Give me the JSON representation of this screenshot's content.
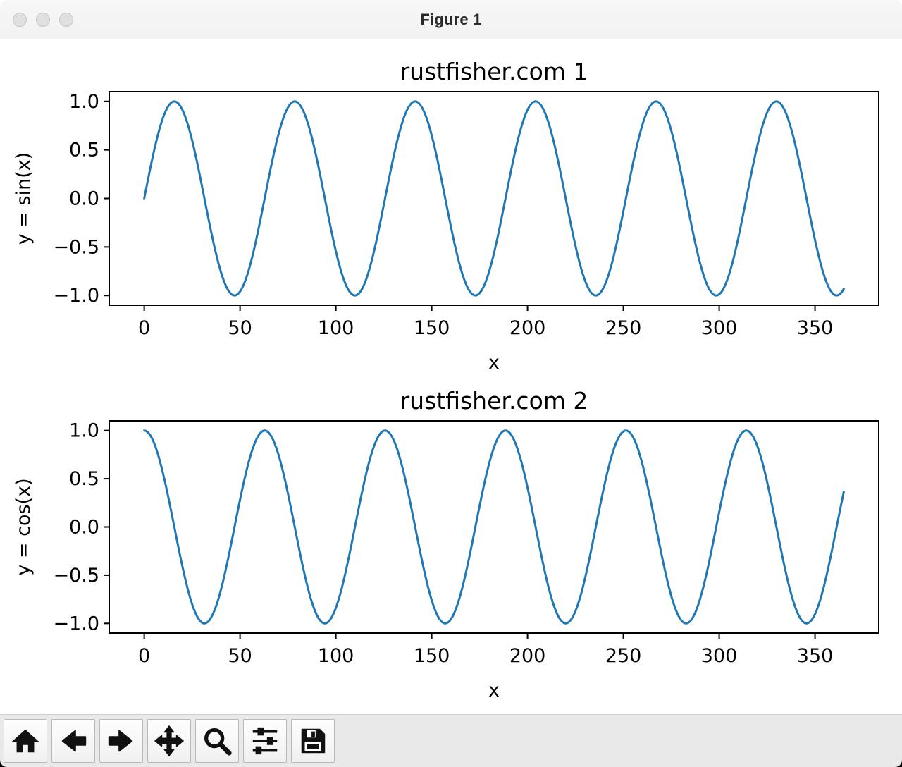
{
  "window": {
    "title": "Figure 1",
    "titlebar_buttons": [
      {
        "name": "close"
      },
      {
        "name": "minimize"
      },
      {
        "name": "zoom"
      }
    ]
  },
  "toolbar": {
    "buttons": [
      {
        "name": "home",
        "icon": "home-icon"
      },
      {
        "name": "back",
        "icon": "arrow-left-icon"
      },
      {
        "name": "forward",
        "icon": "arrow-right-icon"
      },
      {
        "name": "pan",
        "icon": "move-icon"
      },
      {
        "name": "zoom-to-rect",
        "icon": "magnifier-icon"
      },
      {
        "name": "configure-subplots",
        "icon": "sliders-icon"
      },
      {
        "name": "save",
        "icon": "save-icon"
      }
    ]
  },
  "colors": {
    "line": "#1f77b4",
    "axis": "#000000",
    "titlebar_bg": "#f5f5f5",
    "toolbar_bg": "#e9e9e9",
    "figure_bg": "#ffffff"
  },
  "chart_data": [
    {
      "type": "line",
      "title": "rustfisher.com 1",
      "xlabel": "x",
      "ylabel": "y = sin(x)",
      "xlim": [
        -18.25,
        383.25
      ],
      "ylim": [
        -1.1,
        1.1
      ],
      "grid": false,
      "legend": null,
      "x_ticks": {
        "values": [
          0,
          50,
          100,
          150,
          200,
          250,
          300,
          350
        ],
        "labels": [
          "0",
          "50",
          "100",
          "150",
          "200",
          "250",
          "300",
          "350"
        ]
      },
      "y_ticks": {
        "values": [
          1.0,
          0.5,
          0.0,
          -0.5,
          -1.0
        ],
        "labels": [
          "1.0",
          "0.5",
          "0.0",
          "−0.5",
          "−1.0"
        ]
      },
      "series": [
        {
          "name": "sin",
          "expression": "y = sin(0.1·x)",
          "function": "sin",
          "angular_frequency": 0.1,
          "x_start": 0,
          "x_end": 365,
          "x_step": 1,
          "amplitude": 1.0,
          "color": "#1f77b4",
          "line_width": 3
        }
      ]
    },
    {
      "type": "line",
      "title": "rustfisher.com 2",
      "xlabel": "x",
      "ylabel": "y = cos(x)",
      "xlim": [
        -18.25,
        383.25
      ],
      "ylim": [
        -1.1,
        1.1
      ],
      "grid": false,
      "legend": null,
      "x_ticks": {
        "values": [
          0,
          50,
          100,
          150,
          200,
          250,
          300,
          350
        ],
        "labels": [
          "0",
          "50",
          "100",
          "150",
          "200",
          "250",
          "300",
          "350"
        ]
      },
      "y_ticks": {
        "values": [
          1.0,
          0.5,
          0.0,
          -0.5,
          -1.0
        ],
        "labels": [
          "1.0",
          "0.5",
          "0.0",
          "−0.5",
          "−1.0"
        ]
      },
      "series": [
        {
          "name": "cos",
          "expression": "y = cos(0.1·x)",
          "function": "cos",
          "angular_frequency": 0.1,
          "x_start": 0,
          "x_end": 365,
          "x_step": 1,
          "amplitude": 1.0,
          "color": "#1f77b4",
          "line_width": 3
        }
      ]
    }
  ]
}
